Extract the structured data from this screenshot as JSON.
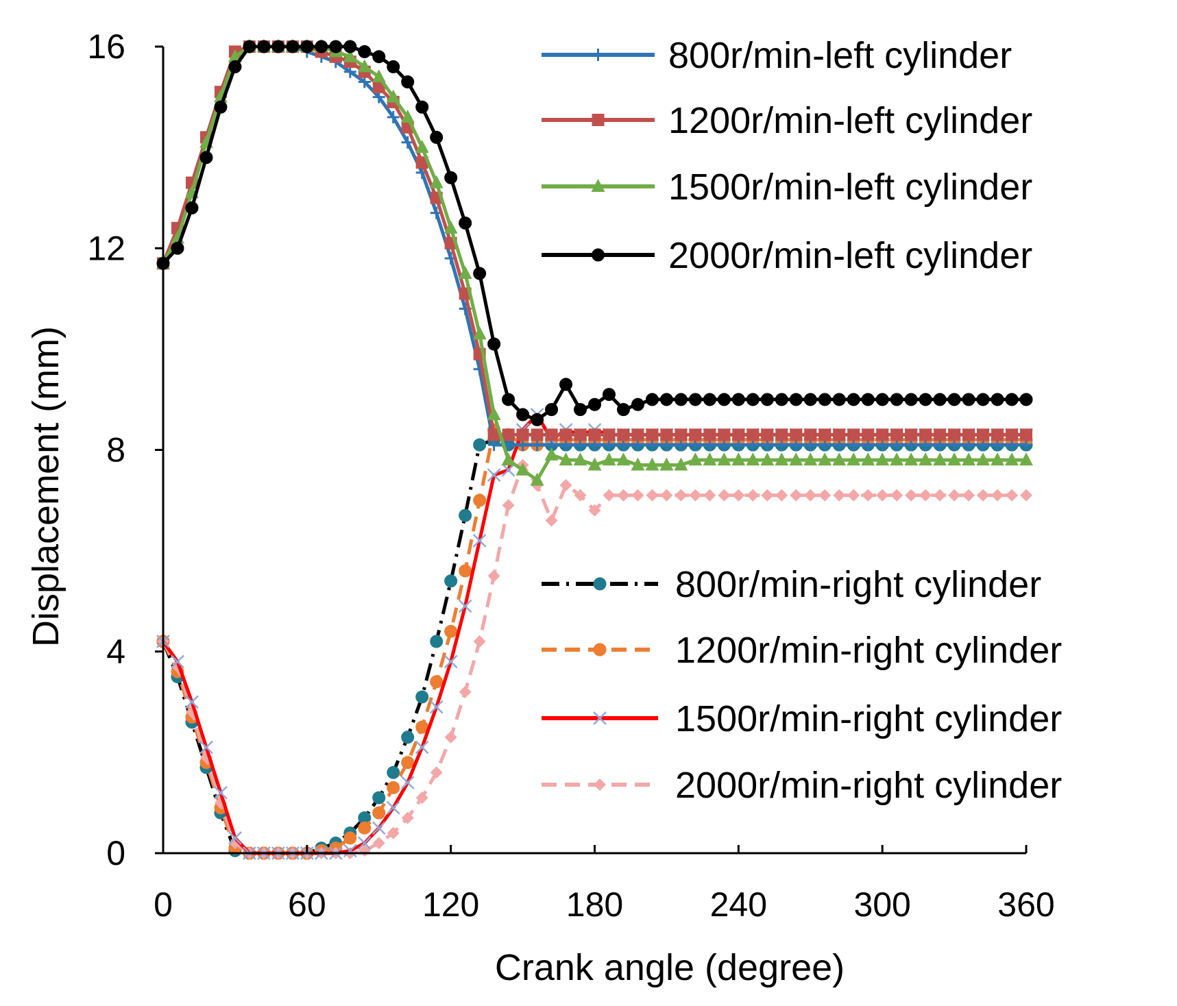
{
  "chart_data": {
    "type": "line",
    "title": "",
    "xlabel": "Crank angle (degree)",
    "ylabel": "Displacement (mm)",
    "xlim": [
      0,
      360
    ],
    "ylim": [
      0,
      16
    ],
    "xticks": [
      0,
      60,
      120,
      180,
      240,
      300,
      360
    ],
    "yticks": [
      0,
      4,
      8,
      12,
      16
    ],
    "grid": false,
    "legend_placement": [
      "top-right",
      "middle-right"
    ],
    "series": [
      {
        "name": "800r/min-left cylinder",
        "color": "#2E75B6",
        "dash": "solid",
        "marker": "plus",
        "x": [
          0,
          6,
          12,
          18,
          24,
          30,
          36,
          42,
          48,
          54,
          60,
          66,
          72,
          78,
          84,
          90,
          96,
          102,
          108,
          114,
          120,
          126,
          132,
          138,
          144,
          150,
          156,
          162,
          168,
          174,
          180,
          186,
          192,
          198,
          204,
          210,
          216,
          222,
          228,
          234,
          240,
          246,
          252,
          258,
          264,
          270,
          276,
          282,
          288,
          294,
          300,
          306,
          312,
          318,
          324,
          330,
          336,
          342,
          348,
          354,
          360
        ],
        "y": [
          11.7,
          12.3,
          13.2,
          14.2,
          15.1,
          15.8,
          16.0,
          16.0,
          16.0,
          16.0,
          15.9,
          15.8,
          15.7,
          15.5,
          15.3,
          15.0,
          14.6,
          14.1,
          13.5,
          12.7,
          11.8,
          10.8,
          9.6,
          8.1,
          8.1,
          8.1,
          8.1,
          8.1,
          8.1,
          8.1,
          8.1,
          8.1,
          8.1,
          8.1,
          8.1,
          8.1,
          8.1,
          8.1,
          8.1,
          8.1,
          8.1,
          8.1,
          8.1,
          8.1,
          8.1,
          8.1,
          8.1,
          8.1,
          8.1,
          8.1,
          8.1,
          8.1,
          8.1,
          8.1,
          8.1,
          8.1,
          8.1,
          8.1,
          8.1,
          8.1,
          8.1
        ]
      },
      {
        "name": "1200r/min-left cylinder",
        "color": "#C0504D",
        "dash": "solid",
        "marker": "square",
        "x": [
          0,
          6,
          12,
          18,
          24,
          30,
          36,
          42,
          48,
          54,
          60,
          66,
          72,
          78,
          84,
          90,
          96,
          102,
          108,
          114,
          120,
          126,
          132,
          138,
          144,
          150,
          156,
          162,
          168,
          174,
          180,
          186,
          192,
          198,
          204,
          210,
          216,
          222,
          228,
          234,
          240,
          246,
          252,
          258,
          264,
          270,
          276,
          282,
          288,
          294,
          300,
          306,
          312,
          318,
          324,
          330,
          336,
          342,
          348,
          354,
          360
        ],
        "y": [
          11.7,
          12.4,
          13.3,
          14.2,
          15.1,
          15.9,
          16.0,
          16.0,
          16.0,
          16.0,
          16.0,
          15.9,
          15.8,
          15.7,
          15.5,
          15.2,
          14.9,
          14.4,
          13.7,
          13.0,
          12.1,
          11.1,
          9.9,
          8.3,
          8.3,
          8.3,
          8.3,
          8.3,
          8.3,
          8.3,
          8.3,
          8.3,
          8.3,
          8.3,
          8.3,
          8.3,
          8.3,
          8.3,
          8.3,
          8.3,
          8.3,
          8.3,
          8.3,
          8.3,
          8.3,
          8.3,
          8.3,
          8.3,
          8.3,
          8.3,
          8.3,
          8.3,
          8.3,
          8.3,
          8.3,
          8.3,
          8.3,
          8.3,
          8.3,
          8.3,
          8.3
        ]
      },
      {
        "name": "1500r/min-left cylinder",
        "color": "#70AD47",
        "dash": "solid",
        "marker": "triangle",
        "x": [
          0,
          6,
          12,
          18,
          24,
          30,
          36,
          42,
          48,
          54,
          60,
          66,
          72,
          78,
          84,
          90,
          96,
          102,
          108,
          114,
          120,
          126,
          132,
          138,
          144,
          150,
          156,
          162,
          168,
          174,
          180,
          186,
          192,
          198,
          204,
          210,
          216,
          222,
          228,
          234,
          240,
          246,
          252,
          258,
          264,
          270,
          276,
          282,
          288,
          294,
          300,
          306,
          312,
          318,
          324,
          330,
          336,
          342,
          348,
          354,
          360
        ],
        "y": [
          11.7,
          12.2,
          13.1,
          14.1,
          15.0,
          15.8,
          16.0,
          16.0,
          16.0,
          16.0,
          16.0,
          16.0,
          15.9,
          15.8,
          15.6,
          15.4,
          15.0,
          14.6,
          14.0,
          13.3,
          12.4,
          11.5,
          10.3,
          8.7,
          7.8,
          7.6,
          7.4,
          7.9,
          7.8,
          7.8,
          7.7,
          7.8,
          7.8,
          7.7,
          7.7,
          7.7,
          7.7,
          7.8,
          7.8,
          7.8,
          7.8,
          7.8,
          7.8,
          7.8,
          7.8,
          7.8,
          7.8,
          7.8,
          7.8,
          7.8,
          7.8,
          7.8,
          7.8,
          7.8,
          7.8,
          7.8,
          7.8,
          7.8,
          7.8,
          7.8,
          7.8
        ]
      },
      {
        "name": "2000r/min-left cylinder",
        "color": "#000000",
        "dash": "solid",
        "marker": "circle",
        "x": [
          0,
          6,
          12,
          18,
          24,
          30,
          36,
          42,
          48,
          54,
          60,
          66,
          72,
          78,
          84,
          90,
          96,
          102,
          108,
          114,
          120,
          126,
          132,
          138,
          144,
          150,
          156,
          162,
          168,
          174,
          180,
          186,
          192,
          198,
          204,
          210,
          216,
          222,
          228,
          234,
          240,
          246,
          252,
          258,
          264,
          270,
          276,
          282,
          288,
          294,
          300,
          306,
          312,
          318,
          324,
          330,
          336,
          342,
          348,
          354,
          360
        ],
        "y": [
          11.7,
          12.0,
          12.8,
          13.8,
          14.8,
          15.6,
          16.0,
          16.0,
          16.0,
          16.0,
          16.0,
          16.0,
          16.0,
          16.0,
          15.9,
          15.8,
          15.6,
          15.3,
          14.8,
          14.2,
          13.4,
          12.5,
          11.5,
          10.1,
          9.0,
          8.7,
          8.6,
          8.8,
          9.3,
          8.8,
          8.9,
          9.1,
          8.8,
          8.9,
          9.0,
          9.0,
          9.0,
          9.0,
          9.0,
          9.0,
          9.0,
          9.0,
          9.0,
          9.0,
          9.0,
          9.0,
          9.0,
          9.0,
          9.0,
          9.0,
          9.0,
          9.0,
          9.0,
          9.0,
          9.0,
          9.0,
          9.0,
          9.0,
          9.0,
          9.0,
          9.0
        ]
      },
      {
        "name": "800r/min-right cylinder",
        "color": "#000000",
        "marker_color": "#1F7B8E",
        "dash": "dash-dot",
        "marker": "circle",
        "x": [
          0,
          6,
          12,
          18,
          24,
          30,
          36,
          42,
          48,
          54,
          60,
          66,
          72,
          78,
          84,
          90,
          96,
          102,
          108,
          114,
          120,
          126,
          132,
          138,
          144,
          150,
          156,
          162,
          168,
          174,
          180,
          186,
          192,
          198,
          204,
          210,
          216,
          222,
          228,
          234,
          240,
          246,
          252,
          258,
          264,
          270,
          276,
          282,
          288,
          294,
          300,
          306,
          312,
          318,
          324,
          330,
          336,
          342,
          348,
          354,
          360
        ],
        "y": [
          4.2,
          3.5,
          2.6,
          1.7,
          0.8,
          0.05,
          0.0,
          0.0,
          0.0,
          0.0,
          0.0,
          0.1,
          0.2,
          0.4,
          0.7,
          1.1,
          1.6,
          2.3,
          3.1,
          4.2,
          5.4,
          6.7,
          8.1,
          8.2,
          8.1,
          8.1,
          8.1,
          8.1,
          8.1,
          8.1,
          8.1,
          8.1,
          8.1,
          8.1,
          8.1,
          8.1,
          8.1,
          8.1,
          8.1,
          8.1,
          8.1,
          8.1,
          8.1,
          8.1,
          8.1,
          8.1,
          8.1,
          8.1,
          8.1,
          8.1,
          8.1,
          8.1,
          8.1,
          8.1,
          8.1,
          8.1,
          8.1,
          8.1,
          8.1,
          8.1,
          8.1
        ]
      },
      {
        "name": "1200r/min-right cylinder",
        "color": "#ED7D31",
        "dash": "dash",
        "marker": "circle",
        "x": [
          0,
          6,
          12,
          18,
          24,
          30,
          36,
          42,
          48,
          54,
          60,
          66,
          72,
          78,
          84,
          90,
          96,
          102,
          108,
          114,
          120,
          126,
          132,
          138,
          144,
          150,
          156,
          162,
          168,
          174,
          180,
          186,
          192,
          198,
          204,
          210,
          216,
          222,
          228,
          234,
          240,
          246,
          252,
          258,
          264,
          270,
          276,
          282,
          288,
          294,
          300,
          306,
          312,
          318,
          324,
          330,
          336,
          342,
          348,
          354,
          360
        ],
        "y": [
          4.2,
          3.6,
          2.7,
          1.8,
          0.9,
          0.1,
          0.0,
          0.0,
          0.0,
          0.0,
          0.0,
          0.05,
          0.1,
          0.3,
          0.5,
          0.8,
          1.3,
          1.8,
          2.5,
          3.4,
          4.4,
          5.6,
          7.0,
          8.4,
          8.3,
          8.1,
          8.1,
          8.2,
          8.2,
          8.2,
          8.2,
          8.2,
          8.2,
          8.2,
          8.2,
          8.2,
          8.2,
          8.2,
          8.2,
          8.2,
          8.2,
          8.2,
          8.2,
          8.2,
          8.2,
          8.2,
          8.2,
          8.2,
          8.2,
          8.2,
          8.2,
          8.2,
          8.2,
          8.2,
          8.2,
          8.2,
          8.2,
          8.2,
          8.2,
          8.2,
          8.2
        ]
      },
      {
        "name": "1500r/min-right cylinder",
        "color": "#FF0000",
        "marker_color": "#8EA9DB",
        "dash": "solid",
        "marker": "x",
        "x": [
          0,
          6,
          12,
          18,
          24,
          30,
          36,
          42,
          48,
          54,
          60,
          66,
          72,
          78,
          84,
          90,
          96,
          102,
          108,
          114,
          120,
          126,
          132,
          138,
          144,
          150,
          156,
          162,
          168,
          174,
          180,
          186,
          192,
          198,
          204,
          210,
          216,
          222,
          228,
          234,
          240,
          246,
          252,
          258,
          264,
          270,
          276,
          282,
          288,
          294,
          300,
          306,
          312,
          318,
          324,
          330,
          336,
          342,
          348,
          354,
          360
        ],
        "y": [
          4.2,
          3.8,
          3.0,
          2.1,
          1.2,
          0.3,
          0.0,
          0.0,
          0.0,
          0.0,
          0.0,
          0.0,
          0.0,
          0.05,
          0.2,
          0.5,
          0.9,
          1.4,
          2.1,
          2.9,
          3.8,
          4.9,
          6.2,
          7.5,
          7.6,
          8.4,
          8.7,
          8.2,
          8.4,
          8.3,
          8.4,
          8.3,
          8.3,
          8.3,
          8.3,
          8.3,
          8.3,
          8.3,
          8.3,
          8.3,
          8.3,
          8.3,
          8.3,
          8.3,
          8.3,
          8.3,
          8.3,
          8.3,
          8.3,
          8.3,
          8.3,
          8.3,
          8.3,
          8.3,
          8.3,
          8.3,
          8.3,
          8.3,
          8.3,
          8.3,
          8.3
        ]
      },
      {
        "name": "2000r/min-right cylinder",
        "color": "#F4A7A7",
        "dash": "dash",
        "marker": "diamond",
        "x": [
          0,
          6,
          12,
          18,
          24,
          30,
          36,
          42,
          48,
          54,
          60,
          66,
          72,
          78,
          84,
          90,
          96,
          102,
          108,
          114,
          120,
          126,
          132,
          138,
          144,
          150,
          156,
          162,
          168,
          174,
          180,
          186,
          192,
          198,
          204,
          210,
          216,
          222,
          228,
          234,
          240,
          246,
          252,
          258,
          264,
          270,
          276,
          282,
          288,
          294,
          300,
          306,
          312,
          318,
          324,
          330,
          336,
          342,
          348,
          354,
          360
        ],
        "y": [
          4.2,
          3.7,
          2.8,
          1.9,
          1.0,
          0.2,
          0.0,
          0.0,
          0.0,
          0.0,
          0.0,
          0.0,
          0.0,
          0.0,
          0.05,
          0.2,
          0.4,
          0.7,
          1.1,
          1.6,
          2.3,
          3.2,
          4.2,
          5.5,
          6.9,
          7.7,
          7.3,
          6.6,
          7.3,
          7.1,
          6.8,
          7.1,
          7.1,
          7.1,
          7.1,
          7.1,
          7.1,
          7.1,
          7.1,
          7.1,
          7.1,
          7.1,
          7.1,
          7.1,
          7.1,
          7.1,
          7.1,
          7.1,
          7.1,
          7.1,
          7.1,
          7.1,
          7.1,
          7.1,
          7.1,
          7.1,
          7.1,
          7.1,
          7.1,
          7.1,
          7.1
        ]
      }
    ]
  }
}
